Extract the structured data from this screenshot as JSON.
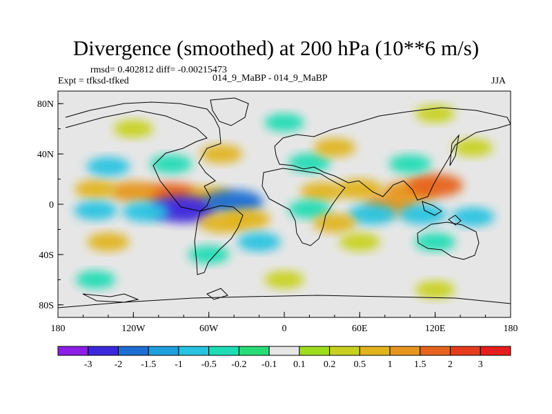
{
  "chart_data": {
    "type": "heatmap",
    "title": "Divergence (smoothed) at 200 hPa (10**6 m/s)",
    "stats": "rmsd= 0.402812 diff= -0.00215473",
    "experiment": "Expt = tfksd-tfked",
    "comparison": "014_9_MaBP - 014_9_MaBP",
    "season": "JJA",
    "lon_range": [
      -180,
      180
    ],
    "lat_range": [
      -90,
      90
    ],
    "x_ticks": [
      {
        "value": -180,
        "label": "180"
      },
      {
        "value": -120,
        "label": "120W"
      },
      {
        "value": -60,
        "label": "60W"
      },
      {
        "value": 0,
        "label": "0"
      },
      {
        "value": 60,
        "label": "60E"
      },
      {
        "value": 120,
        "label": "120E"
      },
      {
        "value": 180,
        "label": "180"
      }
    ],
    "y_ticks": [
      {
        "value": 80,
        "label": "80N"
      },
      {
        "value": 40,
        "label": "40N"
      },
      {
        "value": 0,
        "label": "0"
      },
      {
        "value": -40,
        "label": "40S"
      },
      {
        "value": -80,
        "label": "80S"
      }
    ],
    "colorbar": {
      "colors": [
        "#8c1ee6",
        "#3c28dc",
        "#1e6ed2",
        "#1ea0dc",
        "#28c3e1",
        "#1edcb4",
        "#28dc78",
        "#e6e6e6",
        "#a0dc1e",
        "#c8d21e",
        "#e1b41e",
        "#e6961e",
        "#e6641e",
        "#e63c1e",
        "#e61e1e"
      ],
      "labels": [
        "-3",
        "-2",
        "-1.5",
        "-1",
        "-0.5",
        "-0.2",
        "-0.1",
        "0.1",
        "0.2",
        "0.5",
        "1",
        "1.5",
        "2",
        "3"
      ],
      "levels": [
        -3,
        -2,
        -1.5,
        -1,
        -0.5,
        -0.2,
        -0.1,
        0.1,
        0.2,
        0.5,
        1,
        1.5,
        2,
        3
      ]
    },
    "features": [
      {
        "lon": -90,
        "lat": 8,
        "value": 1.6
      },
      {
        "lon": -120,
        "lat": 10,
        "value": 1.0
      },
      {
        "lon": -150,
        "lat": 12,
        "value": 0.5
      },
      {
        "lon": -60,
        "lat": 6,
        "value": 0.9
      },
      {
        "lon": 100,
        "lat": 10,
        "value": 1.4
      },
      {
        "lon": 120,
        "lat": 15,
        "value": 1.6
      },
      {
        "lon": 60,
        "lat": 12,
        "value": 0.9
      },
      {
        "lon": 30,
        "lat": 10,
        "value": 0.6
      },
      {
        "lon": 85,
        "lat": 0,
        "value": 1.3
      },
      {
        "lon": -80,
        "lat": -4,
        "value": -2.5
      },
      {
        "lon": -40,
        "lat": 2,
        "value": -1.8
      },
      {
        "lon": -110,
        "lat": -6,
        "value": -0.9
      },
      {
        "lon": -150,
        "lat": -5,
        "value": -0.6
      },
      {
        "lon": 20,
        "lat": -4,
        "value": -0.5
      },
      {
        "lon": 70,
        "lat": -8,
        "value": -1.0
      },
      {
        "lon": 110,
        "lat": -8,
        "value": -0.9
      },
      {
        "lon": 150,
        "lat": -10,
        "value": -0.6
      },
      {
        "lon": -30,
        "lat": -12,
        "value": 0.9
      },
      {
        "lon": -50,
        "lat": -15,
        "value": 0.7
      },
      {
        "lon": 40,
        "lat": -15,
        "value": 0.6
      },
      {
        "lon": -140,
        "lat": 30,
        "value": -0.6
      },
      {
        "lon": -90,
        "lat": 32,
        "value": -0.5
      },
      {
        "lon": 20,
        "lat": 33,
        "value": -0.5
      },
      {
        "lon": 100,
        "lat": 32,
        "value": -0.5
      },
      {
        "lon": -50,
        "lat": 40,
        "value": 0.5
      },
      {
        "lon": 40,
        "lat": 45,
        "value": 0.5
      },
      {
        "lon": 150,
        "lat": 45,
        "value": 0.3
      },
      {
        "lon": -140,
        "lat": -30,
        "value": 0.5
      },
      {
        "lon": -20,
        "lat": -30,
        "value": -0.6
      },
      {
        "lon": 60,
        "lat": -30,
        "value": 0.4
      },
      {
        "lon": 120,
        "lat": -30,
        "value": -0.4
      },
      {
        "lon": -60,
        "lat": -40,
        "value": -0.4
      },
      {
        "lon": -120,
        "lat": 60,
        "value": 0.3
      },
      {
        "lon": 0,
        "lat": 65,
        "value": -0.3
      },
      {
        "lon": 120,
        "lat": 72,
        "value": 0.3
      },
      {
        "lon": -150,
        "lat": -60,
        "value": -0.3
      },
      {
        "lon": 0,
        "lat": -60,
        "value": 0.3
      },
      {
        "lon": 120,
        "lat": -68,
        "value": 0.3
      }
    ]
  }
}
